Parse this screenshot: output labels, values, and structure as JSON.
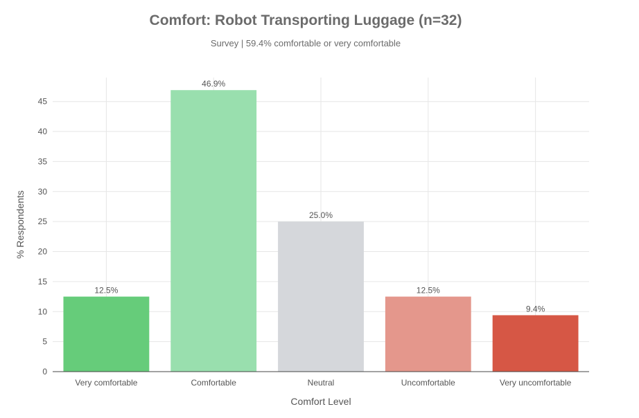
{
  "chart_data": {
    "type": "bar",
    "title": "Comfort: Robot Transporting Luggage (n=32)",
    "subtitle": "Survey | 59.4% comfortable or very comfortable",
    "xlabel": "Comfort Level",
    "ylabel": "% Respondents",
    "categories": [
      "Very comfortable",
      "Comfortable",
      "Neutral",
      "Uncomfortable",
      "Very uncomfortable"
    ],
    "values": [
      12.5,
      46.9,
      25.0,
      12.5,
      9.4
    ],
    "data_labels": [
      "12.5%",
      "46.9%",
      "25.0%",
      "12.5%",
      "9.4%"
    ],
    "colors": [
      "#66cc7a",
      "#99dfae",
      "#d5d7db",
      "#e4978c",
      "#d65745"
    ],
    "ylim": [
      0,
      49
    ],
    "yticks": [
      0,
      5,
      10,
      15,
      20,
      25,
      30,
      35,
      40,
      45
    ],
    "grid": true,
    "legend": "none"
  }
}
